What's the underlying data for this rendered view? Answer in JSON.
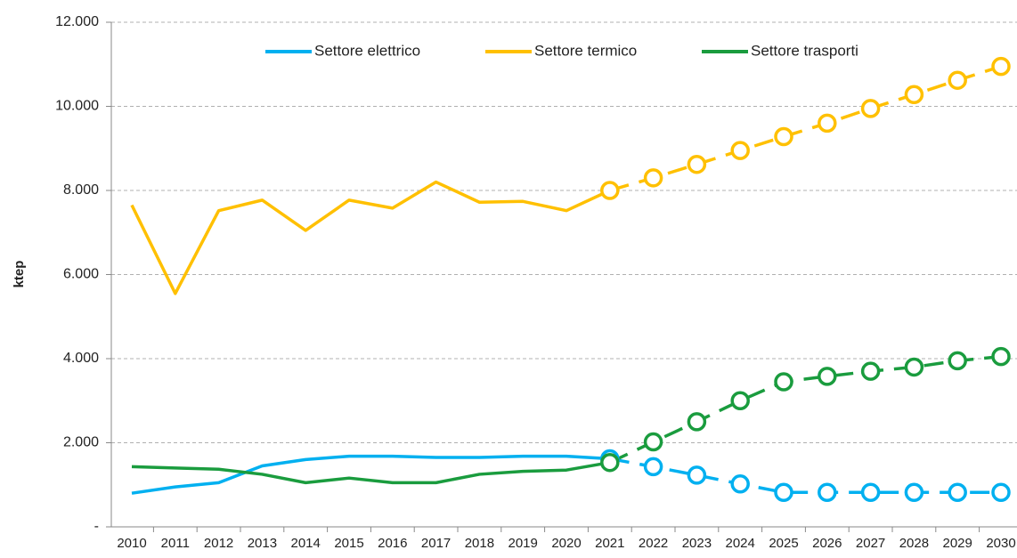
{
  "chart_data": {
    "type": "line",
    "y_label": "ktep",
    "categories": [
      "2010",
      "2011",
      "2012",
      "2013",
      "2014",
      "2015",
      "2016",
      "2017",
      "2018",
      "2019",
      "2020",
      "2021",
      "2022",
      "2023",
      "2024",
      "2025",
      "2026",
      "2027",
      "2028",
      "2029",
      "2030"
    ],
    "forecast_from": "2021",
    "series": [
      {
        "name": "Settore elettrico",
        "color": "#00b0f0",
        "values": [
          800,
          950,
          1050,
          1450,
          1600,
          1680,
          1680,
          1650,
          1650,
          1680,
          1680,
          1620,
          1430,
          1230,
          1020,
          820,
          820,
          820,
          820,
          820,
          820
        ]
      },
      {
        "name": "Settore termico",
        "color": "#ffc000",
        "values": [
          7650,
          5550,
          7520,
          7770,
          7050,
          7770,
          7580,
          8200,
          7720,
          7740,
          7520,
          8000,
          8300,
          8620,
          8950,
          9280,
          9600,
          9950,
          10280,
          10620,
          10950
        ]
      },
      {
        "name": "Settore trasporti",
        "color": "#1a9c3e",
        "values": [
          1430,
          1400,
          1370,
          1250,
          1050,
          1160,
          1050,
          1050,
          1250,
          1320,
          1350,
          1530,
          2020,
          2500,
          3000,
          3450,
          3580,
          3700,
          3800,
          3950,
          4050
        ]
      }
    ],
    "ylim": [
      0,
      12000
    ],
    "yticks": [
      {
        "value": 0,
        "label": "-"
      },
      {
        "value": 2000,
        "label": "2.000"
      },
      {
        "value": 4000,
        "label": "4.000"
      },
      {
        "value": 6000,
        "label": "6.000"
      },
      {
        "value": 8000,
        "label": "8.000"
      },
      {
        "value": 10000,
        "label": "10.000"
      },
      {
        "value": 12000,
        "label": "12.000"
      }
    ],
    "grid": true,
    "legend": "top"
  }
}
